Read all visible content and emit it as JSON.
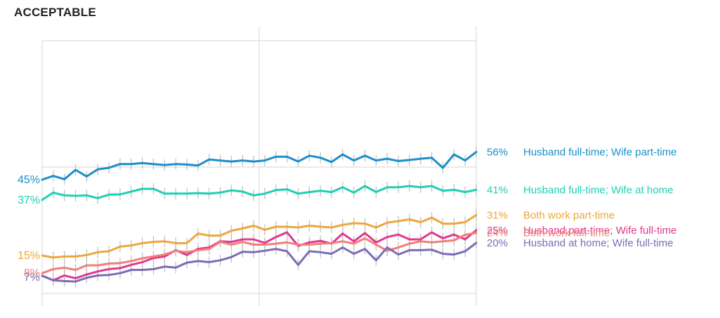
{
  "chart_data": {
    "type": "line",
    "title": "ACCEPTABLE",
    "xlabel": "",
    "ylabel": "",
    "ylim": [
      0,
      100
    ],
    "grid": true,
    "legend": "right",
    "n_points": 40,
    "series": [
      {
        "name": "Husband full-time; Wife part-time",
        "color": "#1b8fc7",
        "start_label": "45%",
        "end_label": "56%",
        "values": [
          45,
          46.5,
          45.2,
          48.9,
          46.3,
          49.1,
          49.7,
          51.2,
          51.2,
          51.6,
          51.2,
          50.8,
          51.2,
          51,
          50.6,
          53,
          52.6,
          52.2,
          52.6,
          52.2,
          52.6,
          54.1,
          54.1,
          52.2,
          54.5,
          53.7,
          52,
          55,
          52.6,
          54.5,
          52.6,
          53.3,
          52.4,
          52.8,
          53.3,
          53.7,
          49.7,
          55,
          52.6,
          56
        ]
      },
      {
        "name": "Husband full-time; Wife at home",
        "color": "#1ecfb6",
        "start_label": "37%",
        "end_label": "41%",
        "values": [
          37,
          39.9,
          38.8,
          38.6,
          38.8,
          37.7,
          39.1,
          39.2,
          40.3,
          41.4,
          41.4,
          39.5,
          39.5,
          39.5,
          39.7,
          39.5,
          39.9,
          40.8,
          40.3,
          38.8,
          39.5,
          40.9,
          41.2,
          39.5,
          40.1,
          40.6,
          40.1,
          42,
          39.9,
          42.5,
          40.1,
          42,
          42,
          42.5,
          42,
          42.5,
          40.6,
          41,
          40.1,
          41
        ]
      },
      {
        "name": "Both work part-time",
        "color": "#eca73b",
        "start_label": "15%",
        "end_label": "31%",
        "values": [
          15,
          14.2,
          14.6,
          14.6,
          15.2,
          16.3,
          16.7,
          18.5,
          19,
          19.9,
          20.4,
          20.6,
          19.9,
          19.9,
          23.7,
          22.9,
          22.9,
          24.8,
          25.7,
          26.8,
          25.2,
          26.4,
          26.4,
          26.1,
          26.8,
          26.4,
          26.1,
          27.1,
          27.8,
          27.6,
          26.1,
          28,
          28.6,
          29.3,
          28.2,
          30,
          27.6,
          27.6,
          28.2,
          31
        ]
      },
      {
        "name": "Husband part-time; Wife full-time",
        "color": "#e2378e",
        "start_label": "",
        "end_label": "25%",
        "values": [
          7,
          5.2,
          7.1,
          6,
          7.5,
          8.7,
          9.6,
          10,
          11.3,
          12.4,
          14,
          14.6,
          17.1,
          15.2,
          17.6,
          18.2,
          20.6,
          20.4,
          21.4,
          21.4,
          20,
          22.3,
          24.2,
          18.8,
          20.2,
          20.8,
          19.7,
          23.7,
          20.6,
          23.9,
          20.2,
          22.3,
          23.3,
          21.4,
          21.4,
          24.2,
          21.8,
          23.3,
          21.4,
          25
        ]
      },
      {
        "name": "Both work full-time",
        "color": "#ef7f79",
        "start_label": "8%",
        "end_label": "24%",
        "values": [
          8,
          9.6,
          10.2,
          9.3,
          11.1,
          11.1,
          11.8,
          12,
          12.8,
          13.9,
          14.6,
          15.4,
          16.9,
          16.3,
          17.1,
          17.6,
          20.4,
          19.3,
          20.4,
          19.3,
          19.3,
          19.7,
          20.2,
          19.3,
          19.3,
          19.7,
          19.9,
          20.6,
          19.7,
          21.8,
          19.3,
          16.9,
          18.2,
          19.7,
          20.6,
          20.2,
          20.6,
          21,
          23.2,
          24
        ]
      },
      {
        "name": "Husband at home; Wife full-time",
        "color": "#7b6cb6",
        "start_label": "7%",
        "end_label": "20%",
        "values": [
          7,
          5.2,
          4.9,
          4.7,
          6.2,
          7.1,
          7.3,
          8,
          9.3,
          9.3,
          9.6,
          10.6,
          10.2,
          12.2,
          12.8,
          12.4,
          13.1,
          14.4,
          16.5,
          16.3,
          16.9,
          17.6,
          16.7,
          11.3,
          16.7,
          16.3,
          15.7,
          18.2,
          15.7,
          17.6,
          13.1,
          18.2,
          15.4,
          17.1,
          17.1,
          17.3,
          15.7,
          15.4,
          16.7,
          20
        ]
      }
    ]
  }
}
